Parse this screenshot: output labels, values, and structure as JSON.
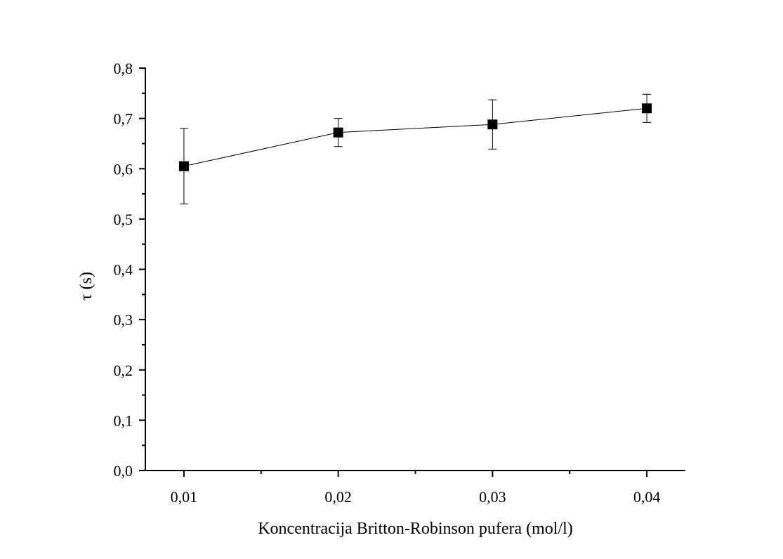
{
  "chart_data": {
    "type": "line",
    "x": [
      "0,01",
      "0,02",
      "0,03",
      "0,04"
    ],
    "x_values": [
      0.01,
      0.02,
      0.03,
      0.04
    ],
    "series": [
      {
        "values": [
          0.605,
          0.672,
          0.688,
          0.72
        ],
        "error": [
          0.075,
          0.028,
          0.049,
          0.028
        ],
        "marker": "square",
        "color": "#000000"
      }
    ],
    "xlabel": "Koncentracija Britton-Robinson pufera (mol/l)",
    "ylabel": "τ (s)",
    "xlim": [
      0.0075,
      0.0425
    ],
    "ylim": [
      0.0,
      0.8
    ],
    "x_ticks": [
      "0,01",
      "0,02",
      "0,03",
      "0,04"
    ],
    "y_ticks": [
      "0,0",
      "0,1",
      "0,2",
      "0,3",
      "0,4",
      "0,5",
      "0,6",
      "0,7",
      "0,8"
    ],
    "grid": false,
    "legend": "none"
  }
}
